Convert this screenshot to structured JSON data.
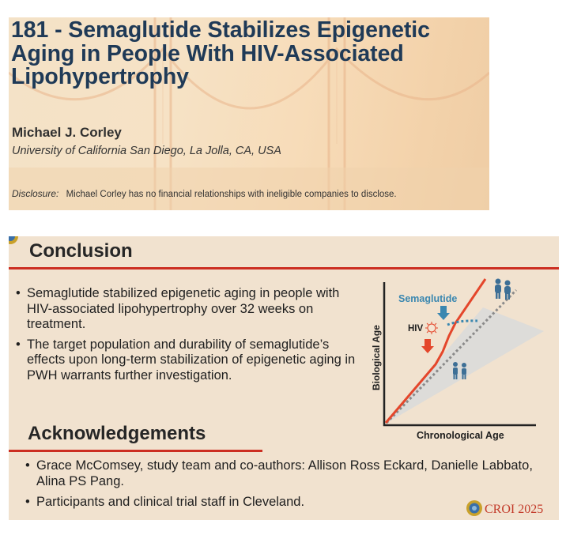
{
  "title_slide": {
    "title": "181 - Semaglutide Stabilizes Epigenetic Aging in People With HIV-Associated Lipohypertrophy",
    "author": "Michael J. Corley",
    "affiliation": "University of California San Diego, La Jolla, CA, USA",
    "disclosure_label": "Disclosure:",
    "disclosure_text": "Michael Corley has no financial relationships with ineligible companies to disclose."
  },
  "conclusion_slide": {
    "heading": "Conclusion",
    "bullets": [
      "Semaglutide stabilized epigenetic aging in people with HIV-associated lipohypertrophy over 32 weeks on treatment.",
      "The target population and durability of semaglutide’s effects upon long-term stabilization of epigenetic aging in PWH warrants further investigation."
    ],
    "ack_heading": "Acknowledgements",
    "ack_bullets": [
      "Grace McComsey, study team and co-authors: Allison Ross Eckard, Danielle Labbato, Alina PS Pang.",
      "Participants and clinical trial staff in Cleveland."
    ],
    "logo_text": "CROI 2025",
    "diagram": {
      "y_label": "Biological Age",
      "x_label": "Chronological Age",
      "semaglutide_label": "Semaglutide",
      "hiv_label": "HIV",
      "colors": {
        "accent_line": "#cc2e22",
        "trajectory": "#e4462b",
        "teal": "#3a87b0",
        "dotted": "#8a8a8a",
        "band": "#d9dadb"
      }
    }
  }
}
